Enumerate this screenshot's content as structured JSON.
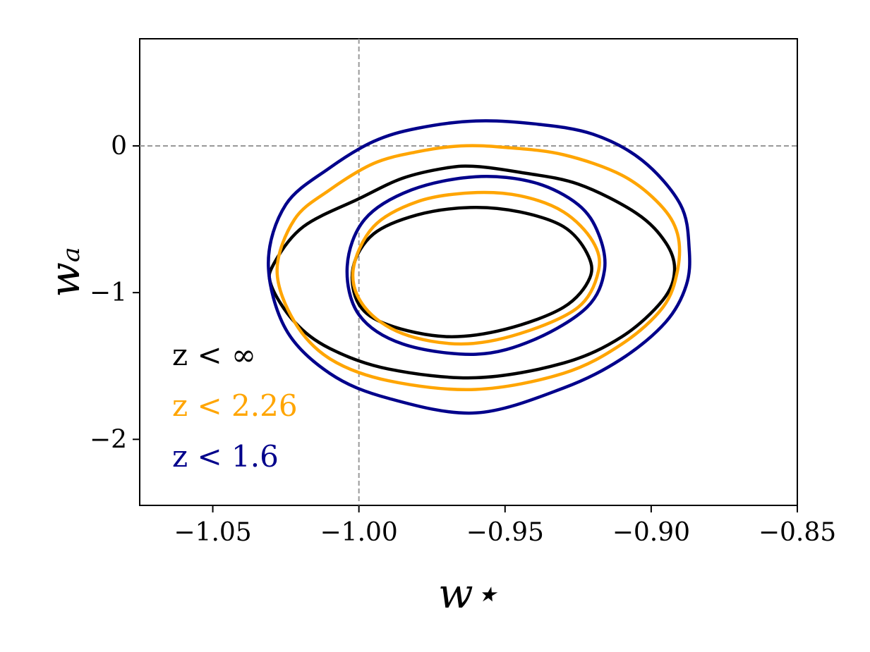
{
  "chart_data": {
    "type": "contour",
    "xlabel": "w⋆",
    "ylabel": "wₐ",
    "xlim": [
      -1.075,
      -0.85
    ],
    "ylim": [
      -2.45,
      0.73
    ],
    "xticks": [
      -1.05,
      -1.0,
      -0.95,
      -0.9,
      -0.85
    ],
    "xtick_labels": [
      "−1.05",
      "−1.00",
      "−0.95",
      "−0.90",
      "−0.85"
    ],
    "yticks": [
      0,
      -1,
      -2
    ],
    "ytick_labels": [
      "0",
      "−1",
      "−2"
    ],
    "reference_lines": {
      "x": -1.0,
      "y": 0.0,
      "color": "#999999",
      "style": "dashed"
    },
    "grid": false,
    "legend_placement": "lower-left",
    "series": [
      {
        "name": "z < ∞",
        "color": "#000000",
        "contours": [
          [
            [
              -1.029,
              -0.8
            ],
            [
              -1.019,
              -0.55
            ],
            [
              -1.0,
              -0.36
            ],
            [
              -0.985,
              -0.22
            ],
            [
              -0.97,
              -0.15
            ],
            [
              -0.96,
              -0.14
            ],
            [
              -0.945,
              -0.18
            ],
            [
              -0.925,
              -0.26
            ],
            [
              -0.905,
              -0.46
            ],
            [
              -0.895,
              -0.66
            ],
            [
              -0.892,
              -0.85
            ],
            [
              -0.896,
              -1.05
            ],
            [
              -0.91,
              -1.3
            ],
            [
              -0.93,
              -1.48
            ],
            [
              -0.96,
              -1.58
            ],
            [
              -0.99,
              -1.52
            ],
            [
              -1.01,
              -1.38
            ],
            [
              -1.022,
              -1.2
            ],
            [
              -1.03,
              -0.95
            ]
          ],
          [
            [
              -1.002,
              -0.83
            ],
            [
              -0.995,
              -0.6
            ],
            [
              -0.98,
              -0.47
            ],
            [
              -0.962,
              -0.42
            ],
            [
              -0.945,
              -0.45
            ],
            [
              -0.93,
              -0.55
            ],
            [
              -0.922,
              -0.73
            ],
            [
              -0.921,
              -0.9
            ],
            [
              -0.93,
              -1.1
            ],
            [
              -0.95,
              -1.25
            ],
            [
              -0.97,
              -1.3
            ],
            [
              -0.99,
              -1.22
            ],
            [
              -1.0,
              -1.08
            ]
          ]
        ]
      },
      {
        "name": "z < 2.26",
        "color": "#ffa500",
        "contours": [
          [
            [
              -1.028,
              -0.85
            ],
            [
              -1.022,
              -0.5
            ],
            [
              -1.01,
              -0.3
            ],
            [
              -0.995,
              -0.12
            ],
            [
              -0.98,
              -0.04
            ],
            [
              -0.965,
              0.0
            ],
            [
              -0.95,
              -0.01
            ],
            [
              -0.93,
              -0.06
            ],
            [
              -0.91,
              -0.2
            ],
            [
              -0.897,
              -0.4
            ],
            [
              -0.891,
              -0.6
            ],
            [
              -0.891,
              -0.85
            ],
            [
              -0.896,
              -1.1
            ],
            [
              -0.91,
              -1.35
            ],
            [
              -0.93,
              -1.55
            ],
            [
              -0.96,
              -1.66
            ],
            [
              -0.99,
              -1.6
            ],
            [
              -1.01,
              -1.45
            ],
            [
              -1.022,
              -1.2
            ]
          ],
          [
            [
              -1.002,
              -0.85
            ],
            [
              -0.995,
              -0.55
            ],
            [
              -0.98,
              -0.38
            ],
            [
              -0.962,
              -0.32
            ],
            [
              -0.945,
              -0.34
            ],
            [
              -0.93,
              -0.45
            ],
            [
              -0.92,
              -0.65
            ],
            [
              -0.918,
              -0.85
            ],
            [
              -0.925,
              -1.1
            ],
            [
              -0.945,
              -1.28
            ],
            [
              -0.965,
              -1.35
            ],
            [
              -0.985,
              -1.28
            ],
            [
              -0.998,
              -1.1
            ]
          ]
        ]
      },
      {
        "name": "z < 1.6",
        "color": "#00008b",
        "contours": [
          [
            [
              -1.031,
              -0.8
            ],
            [
              -1.025,
              -0.4
            ],
            [
              -1.01,
              -0.15
            ],
            [
              -0.995,
              0.03
            ],
            [
              -0.98,
              0.12
            ],
            [
              -0.96,
              0.17
            ],
            [
              -0.94,
              0.15
            ],
            [
              -0.92,
              0.08
            ],
            [
              -0.903,
              -0.1
            ],
            [
              -0.89,
              -0.4
            ],
            [
              -0.887,
              -0.7
            ],
            [
              -0.888,
              -0.95
            ],
            [
              -0.895,
              -1.2
            ],
            [
              -0.91,
              -1.45
            ],
            [
              -0.93,
              -1.65
            ],
            [
              -0.96,
              -1.82
            ],
            [
              -0.99,
              -1.72
            ],
            [
              -1.01,
              -1.55
            ],
            [
              -1.025,
              -1.25
            ]
          ],
          [
            [
              -1.004,
              -0.82
            ],
            [
              -0.998,
              -0.5
            ],
            [
              -0.982,
              -0.3
            ],
            [
              -0.96,
              -0.21
            ],
            [
              -0.94,
              -0.25
            ],
            [
              -0.925,
              -0.4
            ],
            [
              -0.918,
              -0.6
            ],
            [
              -0.916,
              -0.85
            ],
            [
              -0.922,
              -1.1
            ],
            [
              -0.94,
              -1.32
            ],
            [
              -0.96,
              -1.42
            ],
            [
              -0.985,
              -1.35
            ],
            [
              -1.0,
              -1.15
            ]
          ]
        ]
      }
    ]
  }
}
